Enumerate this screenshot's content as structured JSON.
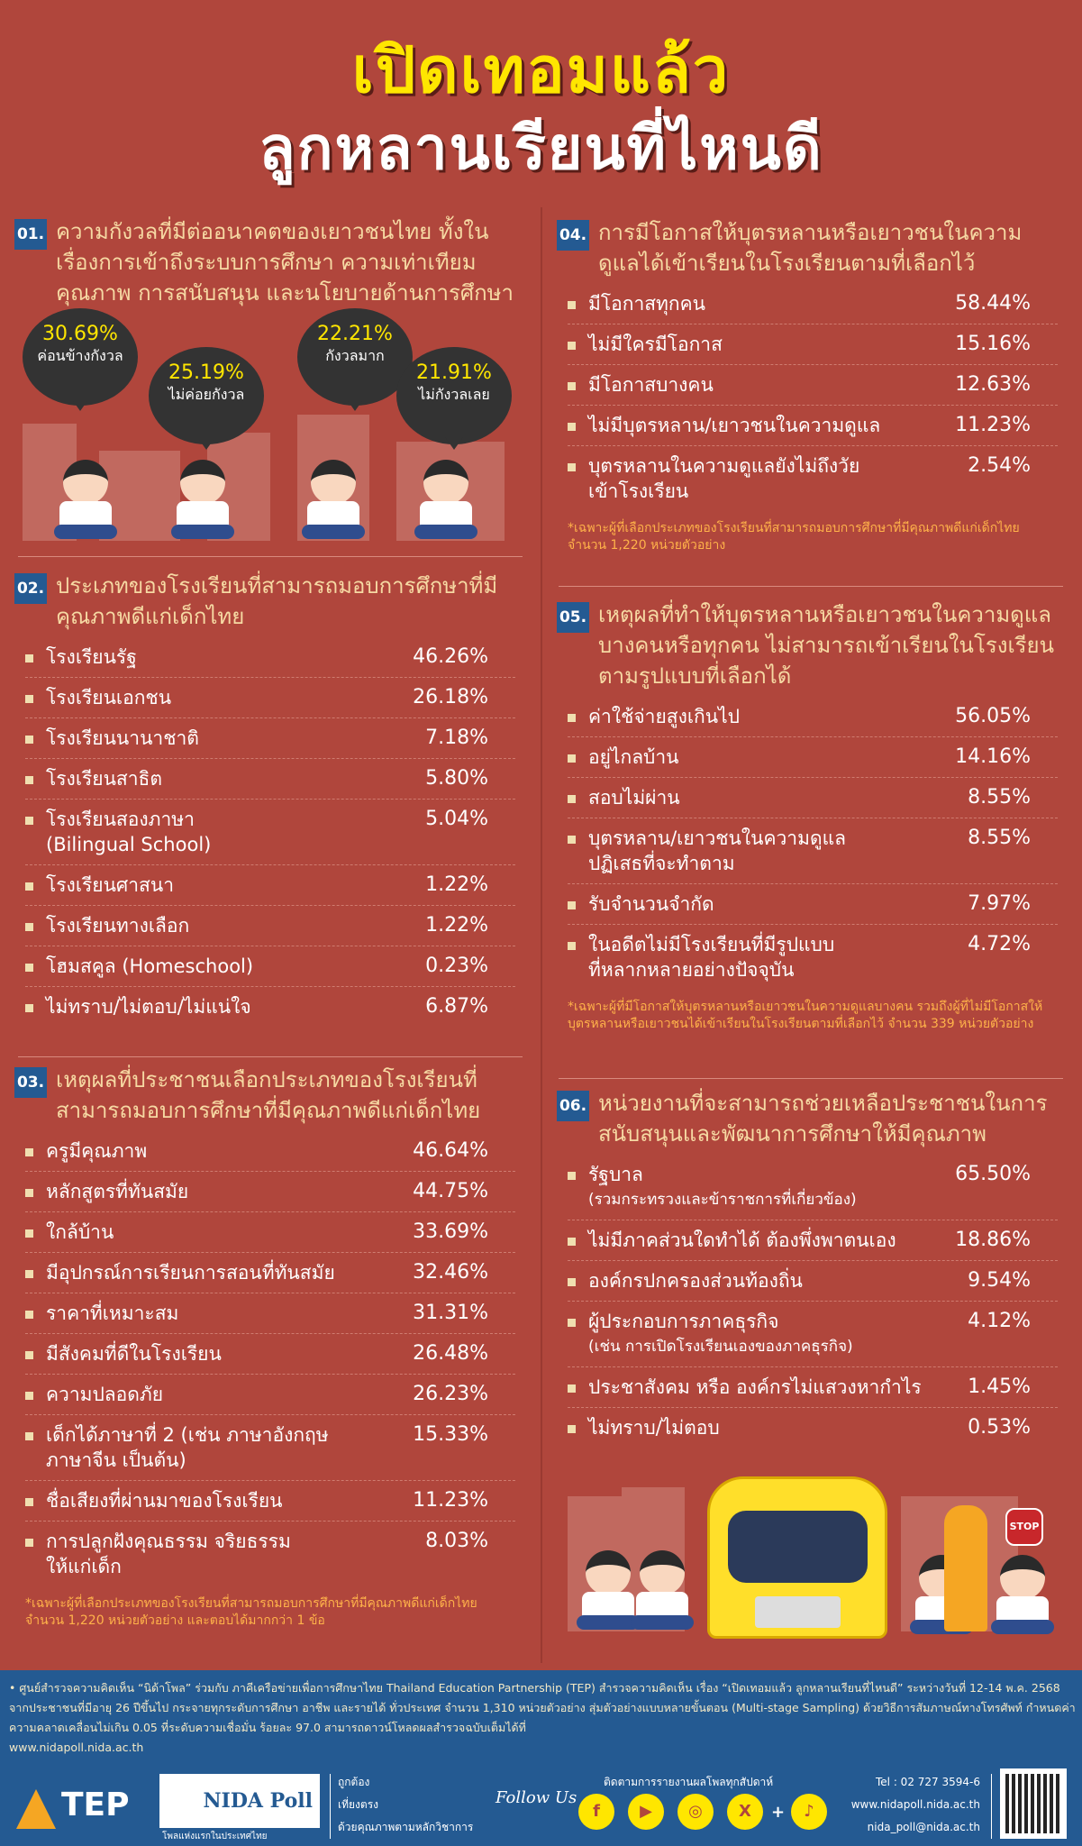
{
  "title": {
    "line1": "เปิดเทอมแล้ว",
    "line2": "ลูกหลานเรียนที่ไหนดี"
  },
  "colors": {
    "background": "#b0463c",
    "badge": "#245a92",
    "heading": "#f6d9a3",
    "title": "#ffe600",
    "footer": "#245a92",
    "note": "#ffb24a"
  },
  "s1": {
    "num": "01.",
    "heading": "ความกังวลที่มีต่ออนาคตของเยาวชนไทย ทั้งในเรื่องการเข้าถึงระบบการศึกษา ความเท่าเทียม คุณภาพ การสนับสนุน และนโยบายด้านการศึกษา",
    "bubbles": [
      {
        "pct": "30.69%",
        "label": "ค่อนข้างกังวล"
      },
      {
        "pct": "25.19%",
        "label": "ไม่ค่อยกังวล"
      },
      {
        "pct": "22.21%",
        "label": "กังวลมาก"
      },
      {
        "pct": "21.91%",
        "label": "ไม่กังวลเลย"
      }
    ]
  },
  "s2": {
    "num": "02.",
    "heading": "ประเภทของโรงเรียนที่สามารถมอบการศึกษาที่มีคุณภาพดีแก่เด็กไทย",
    "items": [
      {
        "label": "โรงเรียนรัฐ",
        "value": "46.26%"
      },
      {
        "label": "โรงเรียนเอกชน",
        "value": "26.18%"
      },
      {
        "label": "โรงเรียนนานาชาติ",
        "value": "7.18%"
      },
      {
        "label": "โรงเรียนสาธิต",
        "value": "5.80%"
      },
      {
        "label": "โรงเรียนสองภาษา",
        "label2": "(Bilingual School)",
        "value": "5.04%"
      },
      {
        "label": "โรงเรียนศาสนา",
        "value": "1.22%"
      },
      {
        "label": "โรงเรียนทางเลือก",
        "value": "1.22%"
      },
      {
        "label": "โฮมสคูล (Homeschool)",
        "value": "0.23%"
      },
      {
        "label": "ไม่ทราบ/ไม่ตอบ/ไม่แน่ใจ",
        "value": "6.87%"
      }
    ]
  },
  "s3": {
    "num": "03.",
    "heading": "เหตุผลที่ประชาชนเลือกประเภทของโรงเรียนที่สามารถมอบการศึกษาที่มีคุณภาพดีแก่เด็กไทย",
    "items": [
      {
        "label": "ครูมีคุณภาพ",
        "value": "46.64%"
      },
      {
        "label": "หลักสูตรที่ทันสมัย",
        "value": "44.75%"
      },
      {
        "label": "ใกล้บ้าน",
        "value": "33.69%"
      },
      {
        "label": "มีอุปกรณ์การเรียนการสอนที่ทันสมัย",
        "value": "32.46%"
      },
      {
        "label": "ราคาที่เหมาะสม",
        "value": "31.31%"
      },
      {
        "label": "มีสังคมที่ดีในโรงเรียน",
        "value": "26.48%"
      },
      {
        "label": "ความปลอดภัย",
        "value": "26.23%"
      },
      {
        "label": "เด็กได้ภาษาที่ 2 (เช่น ภาษาอังกฤษ",
        "label2": "ภาษาจีน เป็นต้น)",
        "value": "15.33%"
      },
      {
        "label": "ชื่อเสียงที่ผ่านมาของโรงเรียน",
        "value": "11.23%"
      },
      {
        "label": "การปลูกฝังคุณธรรม จริยธรรม",
        "label2": "ให้แก่เด็ก",
        "value": "8.03%"
      }
    ],
    "note": "*เฉพาะผู้ที่เลือกประเภทของโรงเรียนที่สามารถมอบการศึกษาที่มีคุณภาพดีแก่เด็กไทย จำนวน 1,220 หน่วยตัวอย่าง และตอบได้มากกว่า 1 ข้อ"
  },
  "s4": {
    "num": "04.",
    "heading": "การมีโอกาสให้บุตรหลานหรือเยาวชนในความดูแลได้เข้าเรียนในโรงเรียนตามที่เลือกไว้",
    "items": [
      {
        "label": "มีโอกาสทุกคน",
        "value": "58.44%"
      },
      {
        "label": "ไม่มีใครมีโอกาส",
        "value": "15.16%"
      },
      {
        "label": "มีโอกาสบางคน",
        "value": "12.63%"
      },
      {
        "label": "ไม่มีบุตรหลาน/เยาวชนในความดูแล",
        "value": "11.23%"
      },
      {
        "label": "บุตรหลานในความดูแลยังไม่ถึงวัย",
        "label2": "เข้าโรงเรียน",
        "value": "2.54%"
      }
    ],
    "note": "*เฉพาะผู้ที่เลือกประเภทของโรงเรียนที่สามารถมอบการศึกษาที่มีคุณภาพดีแก่เด็กไทย จำนวน 1,220 หน่วยตัวอย่าง"
  },
  "s5": {
    "num": "05.",
    "heading": "เหตุผลที่ทำให้บุตรหลานหรือเยาวชนในความดูแลบางคนหรือทุกคน ไม่สามารถเข้าเรียนในโรงเรียนตามรูปแบบที่เลือกได้",
    "items": [
      {
        "label": "ค่าใช้จ่ายสูงเกินไป",
        "value": "56.05%"
      },
      {
        "label": "อยู่ไกลบ้าน",
        "value": "14.16%"
      },
      {
        "label": "สอบไม่ผ่าน",
        "value": "8.55%"
      },
      {
        "label": "บุตรหลาน/เยาวชนในความดูแล",
        "label2": "ปฏิเสธที่จะทำตาม",
        "value": "8.55%"
      },
      {
        "label": "รับจำนวนจำกัด",
        "value": "7.97%"
      },
      {
        "label": "ในอดีตไม่มีโรงเรียนที่มีรูปแบบ",
        "label2": "ที่หลากหลายอย่างปัจจุบัน",
        "value": "4.72%"
      }
    ],
    "note": "*เฉพาะผู้ที่มีโอกาสให้บุตรหลานหรือเยาวชนในความดูแลบางคน รวมถึงผู้ที่ไม่มีโอกาสให้บุตรหลานหรือเยาวชนได้เข้าเรียนในโรงเรียนตามที่เลือกไว้ จำนวน 339 หน่วยตัวอย่าง"
  },
  "s6": {
    "num": "06.",
    "heading": "หน่วยงานที่จะสามารถช่วยเหลือประชาชนในการสนับสนุนและพัฒนาการศึกษาให้มีคุณภาพ",
    "items": [
      {
        "label": "รัฐบาล",
        "label2": "(รวมกระทรวงและข้าราชการที่เกี่ยวข้อง)",
        "value": "65.50%"
      },
      {
        "label": "ไม่มีภาคส่วนใดทำได้ ต้องพึ่งพาตนเอง",
        "value": "18.86%"
      },
      {
        "label": "องค์กรปกครองส่วนท้องถิ่น",
        "value": "9.54%"
      },
      {
        "label": "ผู้ประกอบการภาคธุรกิจ",
        "label2": "(เช่น การเปิดโรงเรียนเองของภาคธุรกิจ)",
        "value": "4.12%"
      },
      {
        "label": "ประชาสังคม หรือ องค์กรไม่แสวงหากำไร",
        "value": "1.45%"
      },
      {
        "label": "ไม่ทราบ/ไม่ตอบ",
        "value": "0.53%"
      }
    ],
    "stop_sign": "STOP"
  },
  "footer": {
    "text": "• ศูนย์สำรวจความคิดเห็น “นิด้าโพล” ร่วมกับ ภาคีเครือข่ายเพื่อการศึกษาไทย Thailand Education Partnership (TEP) สำรวจความคิดเห็น เรื่อง “เปิดเทอมแล้ว ลูกหลานเรียนที่ไหนดี” ระหว่างวันที่ 12-14 พ.ค. 2568 จากประชาชนที่มีอายุ 26 ปีขึ้นไป กระจายทุกระดับการศึกษา อาชีพ และรายได้ ทั่วประเทศ จำนวน 1,310 หน่วยตัวอย่าง สุ่มตัวอย่างแบบหลายขั้นตอน (Multi-stage Sampling) ด้วยวิธีการสัมภาษณ์ทางโทรศัพท์ กำหนดค่าความคลาดเคลื่อนไม่เกิน 0.05 ที่ระดับความเชื่อมั่น ร้อยละ 97.0 สามารถดาวน์โหลดผลสำรวจฉบับเต็มได้ที่",
    "url": "www.nidapoll.nida.ac.th",
    "tep": "TEP",
    "nida": "NIDA Poll",
    "nida_tag": "โพลแห่งแรกในประเทศไทย",
    "slogan": [
      "ถูกต้อง",
      "เที่ยงตรง",
      "ด้วยคุณภาพตามหลักวิชาการ"
    ],
    "follow": "Follow Us",
    "follow_caption": "ติดตามการรายงานผลโพลทุกสัปดาห์",
    "social": [
      "facebook",
      "youtube",
      "instagram",
      "x",
      "tiktok"
    ],
    "plus": "+",
    "tel": "Tel : 02 727 3594-6",
    "web": "www.nidapoll.nida.ac.th",
    "email": "nida_poll@nida.ac.th"
  }
}
